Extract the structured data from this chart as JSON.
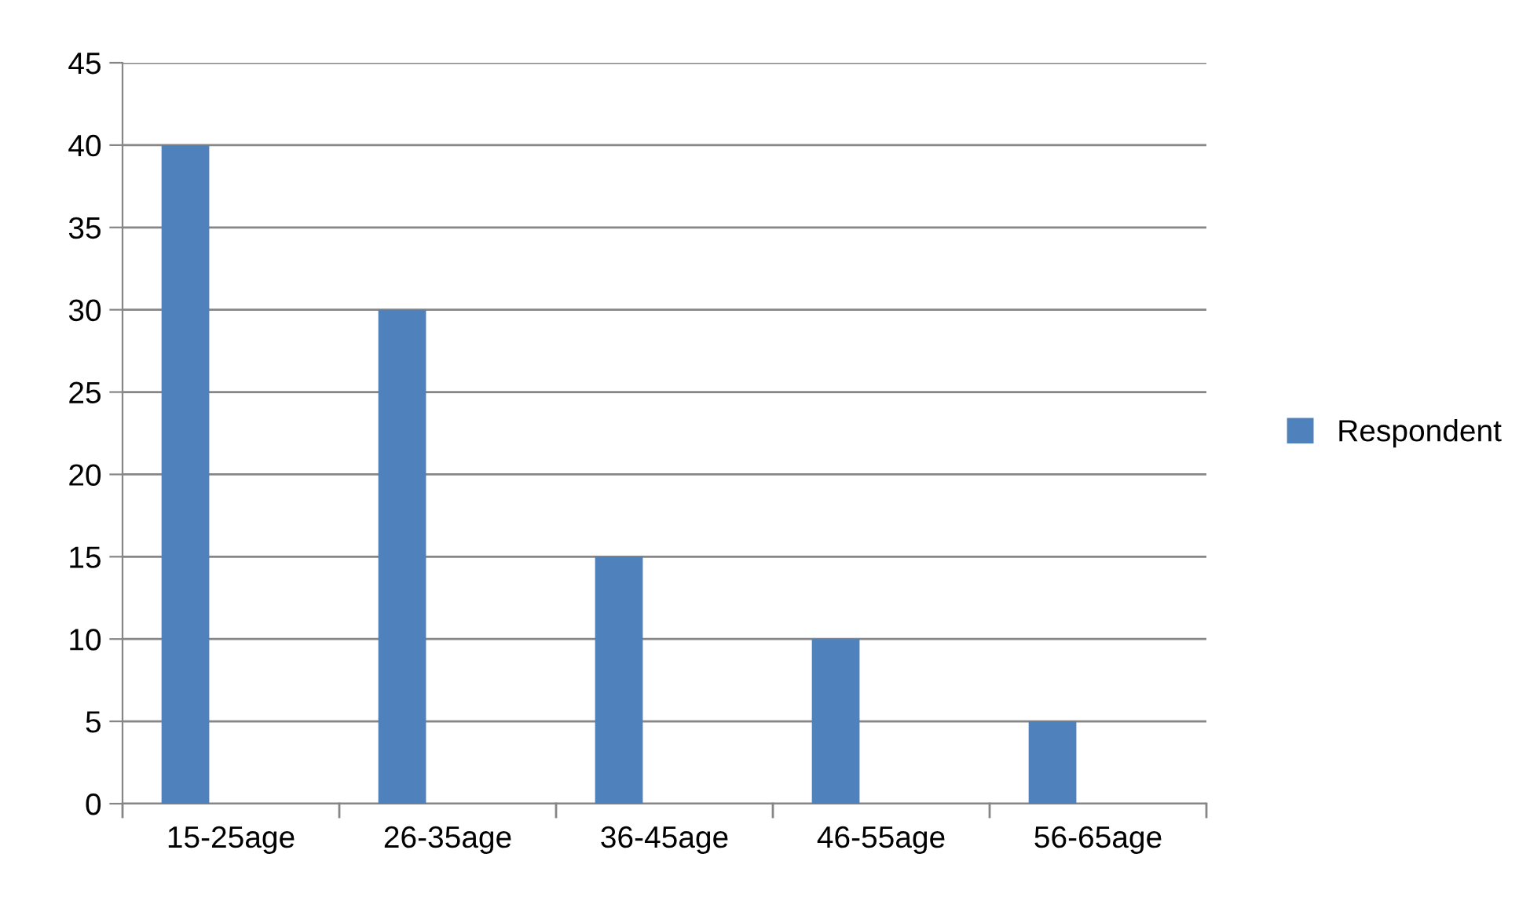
{
  "chart_data": {
    "type": "bar",
    "categories": [
      "15-25age",
      "26-35age",
      "36-45age",
      "46-55age",
      "56-65age"
    ],
    "series": [
      {
        "name": "Respondent",
        "color": "#4f81bd",
        "values": [
          40,
          30,
          15,
          10,
          5
        ]
      }
    ],
    "ylim": [
      0,
      45
    ],
    "yticks": [
      0,
      5,
      10,
      15,
      20,
      25,
      30,
      35,
      40,
      45
    ],
    "grid": "y",
    "legend": "right"
  }
}
